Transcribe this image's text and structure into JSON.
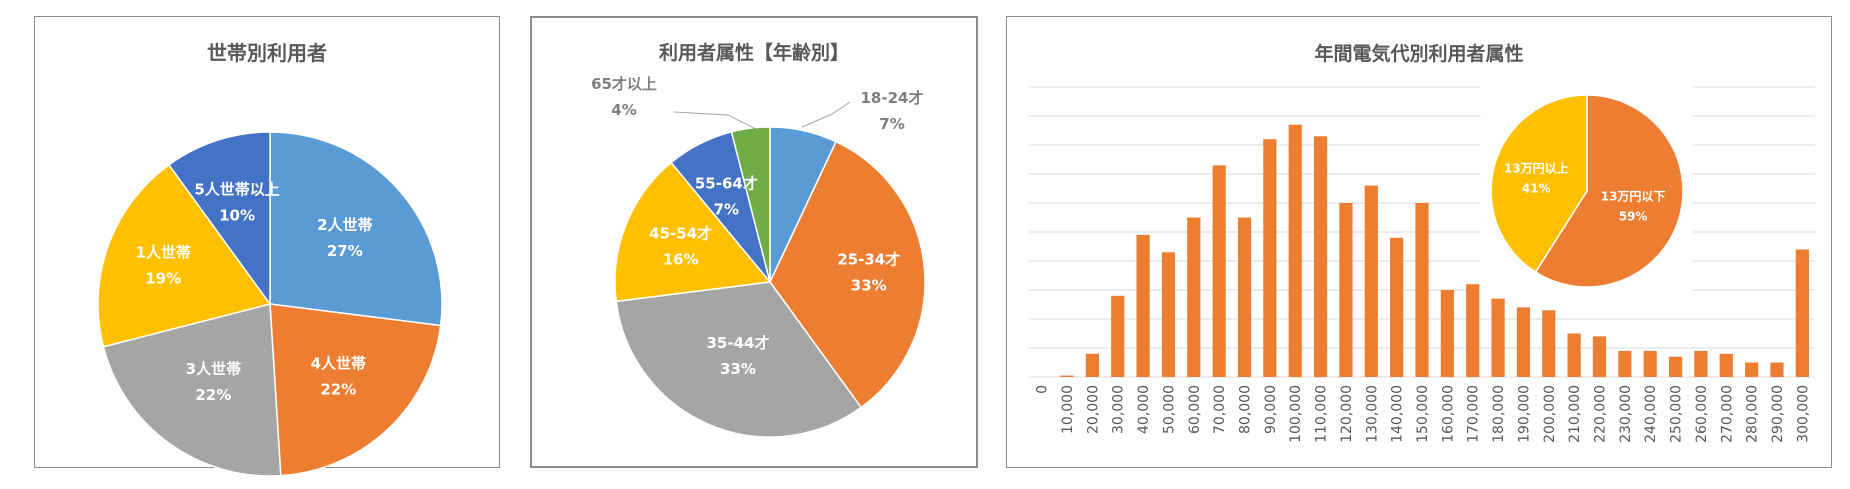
{
  "chart_data": [
    {
      "type": "pie",
      "title": "世帯別利用者",
      "slices": [
        {
          "label": "2人世帯",
          "pct_label": "27%",
          "value": 27,
          "color": "#5b9bd5"
        },
        {
          "label": "4人世帯",
          "pct_label": "22%",
          "value": 22,
          "color": "#ed7d31"
        },
        {
          "label": "3人世帯",
          "pct_label": "22%",
          "value": 22,
          "color": "#a5a5a5"
        },
        {
          "label": "1人世帯",
          "pct_label": "19%",
          "value": 19,
          "color": "#ffc000"
        },
        {
          "label": "5人世帯以上",
          "pct_label": "10%",
          "value": 10,
          "color": "#4472c4"
        }
      ]
    },
    {
      "type": "pie",
      "title": "利用者属性【年齢別】",
      "slices": [
        {
          "label": "18-24才",
          "pct_label": "7%",
          "value": 7,
          "color": "#5b9bd5"
        },
        {
          "label": "25-34才",
          "pct_label": "33%",
          "value": 33,
          "color": "#ed7d31"
        },
        {
          "label": "35-44才",
          "pct_label": "33%",
          "value": 33,
          "color": "#a5a5a5"
        },
        {
          "label": "45-54才",
          "pct_label": "16%",
          "value": 16,
          "color": "#ffc000"
        },
        {
          "label": "55-64才",
          "pct_label": "7%",
          "value": 7,
          "color": "#4472c4"
        },
        {
          "label": "65才以上",
          "pct_label": "4%",
          "value": 4,
          "color": "#70ad47"
        }
      ]
    },
    {
      "type": "bar",
      "title": "年間電気代別利用者属性",
      "color": "#ed7d31",
      "categories": [
        "0",
        "10,000",
        "20,000",
        "30,000",
        "40,000",
        "50,000",
        "60,000",
        "70,000",
        "80,000",
        "90,000",
        "100,000",
        "110,000",
        "120,000",
        "130,000",
        "140,000",
        "150,000",
        "160,000",
        "170,000",
        "180,000",
        "190,000",
        "200,000",
        "210,000",
        "220,000",
        "230,000",
        "240,000",
        "250,000",
        "260,000",
        "270,000",
        "280,000",
        "290,000",
        "300,000"
      ],
      "values": [
        0,
        0.5,
        8,
        28,
        49,
        43,
        55,
        73,
        55,
        82,
        87,
        83,
        60,
        66,
        48,
        60,
        30,
        32,
        27,
        24,
        23,
        15,
        14,
        9,
        9,
        7,
        9,
        8,
        5,
        5,
        44
      ],
      "ylim": [
        0,
        100
      ],
      "inset_pie": {
        "type": "pie",
        "slices": [
          {
            "label": "13万円以下",
            "pct_label": "59%",
            "value": 59,
            "color": "#ed7d31"
          },
          {
            "label": "13万円以上",
            "pct_label": "41%",
            "value": 41,
            "color": "#ffc000"
          }
        ]
      }
    }
  ]
}
